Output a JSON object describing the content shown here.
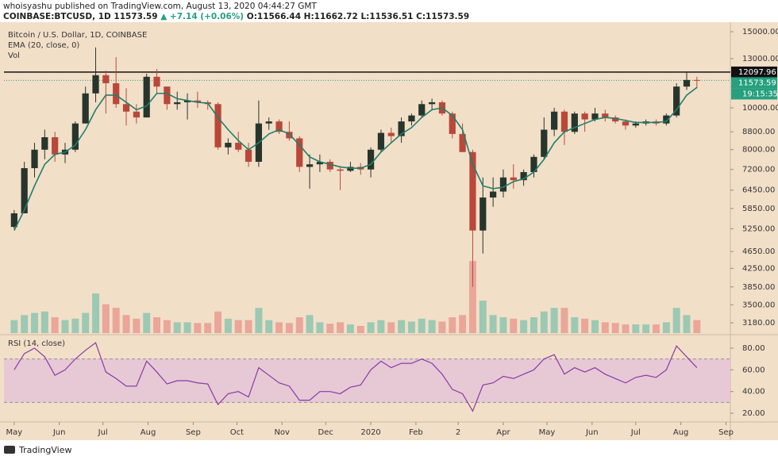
{
  "header": {
    "publisher": "whoisyashu published on TradingView.com, August 13, 2020 04:44:27 GMT",
    "symbol": "COINBASE:BTCUSD, 1D",
    "last": "11573.59",
    "change": "▲ +7.14 (+0.06%)",
    "ohlc": "O:11566.44 H:11662.72 L:11536.51 C:11573.59"
  },
  "chart_data": [
    {
      "type": "candlestick",
      "title": "Bitcoin / U.S. Dollar, 1D, COINBASE",
      "log_scale": true,
      "up_color": "#27352c",
      "down_color": "#b9483a",
      "x": [
        0,
        7,
        14,
        21,
        28,
        35,
        42,
        49,
        56,
        63,
        70,
        77,
        84,
        91,
        98,
        105,
        112,
        119,
        126,
        133,
        140,
        147,
        154,
        161,
        168,
        175,
        182,
        189,
        196,
        203,
        210,
        217,
        224,
        231,
        238,
        245,
        252,
        259,
        266,
        273,
        280,
        287,
        294,
        301,
        308,
        315,
        322,
        329,
        336,
        343,
        350,
        357,
        364,
        371,
        378,
        385,
        392,
        399,
        406,
        413,
        420,
        427,
        434,
        441,
        448,
        455,
        462,
        469
      ],
      "open": [
        5300,
        5700,
        7250,
        8000,
        8550,
        7800,
        8000,
        9200,
        10800,
        11900,
        11400,
        10200,
        9800,
        9500,
        11800,
        11200,
        10200,
        10300,
        10400,
        10300,
        10200,
        8100,
        8300,
        8000,
        7500,
        9200,
        9300,
        8800,
        8500,
        7300,
        7400,
        7500,
        7200,
        7150,
        7300,
        7200,
        8000,
        8750,
        8600,
        9300,
        9600,
        10200,
        10300,
        9700,
        8700,
        7900,
        5200,
        6200,
        6400,
        6900,
        6800,
        7100,
        7700,
        8900,
        9800,
        8800,
        9700,
        9400,
        9700,
        9500,
        9300,
        9100,
        9200,
        9300,
        9200,
        9600,
        11200,
        11600
      ],
      "high": [
        5800,
        7500,
        8300,
        8900,
        8800,
        8300,
        9300,
        11200,
        13800,
        12200,
        13100,
        11100,
        10200,
        12000,
        12300,
        11200,
        10900,
        10800,
        10900,
        10400,
        10300,
        8500,
        8800,
        8300,
        10400,
        9500,
        9400,
        9300,
        8600,
        7800,
        7800,
        7600,
        7300,
        7500,
        7450,
        8100,
        8900,
        9000,
        9500,
        9700,
        10400,
        10500,
        10400,
        9800,
        9200,
        8000,
        6900,
        6900,
        7200,
        7400,
        7200,
        7800,
        9500,
        10000,
        9900,
        9800,
        9800,
        10000,
        9900,
        9600,
        9400,
        9300,
        9400,
        9400,
        9700,
        11400,
        12100,
        11800
      ],
      "low": [
        5250,
        5700,
        6900,
        7600,
        7500,
        7450,
        7900,
        9200,
        10300,
        9700,
        10000,
        9100,
        9200,
        9500,
        10800,
        9900,
        9900,
        9400,
        10000,
        9900,
        8000,
        7800,
        7900,
        7300,
        7300,
        8900,
        8700,
        8400,
        7100,
        6500,
        7100,
        7100,
        6450,
        7100,
        7000,
        6900,
        7900,
        8300,
        8300,
        9100,
        9500,
        9900,
        9600,
        8500,
        7900,
        3850,
        4600,
        5900,
        6200,
        6500,
        6600,
        6900,
        7600,
        8600,
        8200,
        8700,
        8800,
        9300,
        9300,
        9200,
        8900,
        9000,
        9100,
        9100,
        9100,
        9500,
        11000,
        11100
      ],
      "close": [
        5700,
        7250,
        8000,
        8550,
        7800,
        8000,
        9200,
        10800,
        11900,
        11400,
        10200,
        9800,
        9500,
        11800,
        11200,
        10200,
        10300,
        10400,
        10300,
        10200,
        8100,
        8300,
        8000,
        7500,
        9200,
        9300,
        8800,
        8500,
        7300,
        7400,
        7500,
        7200,
        7150,
        7300,
        7200,
        8000,
        8750,
        8600,
        9300,
        9600,
        10200,
        10300,
        9700,
        8700,
        7900,
        5200,
        6200,
        6400,
        6900,
        6800,
        7100,
        7700,
        8900,
        9800,
        8800,
        9700,
        9400,
        9700,
        9500,
        9300,
        9100,
        9200,
        9300,
        9200,
        9600,
        11200,
        11600,
        11573.59
      ],
      "ema": {
        "name": "EMA (20, close, 0)",
        "color": "#1f7f6c",
        "values": [
          5200,
          5800,
          6600,
          7400,
          7800,
          7900,
          8200,
          8900,
          9900,
          10700,
          10700,
          10300,
          9900,
          10100,
          10800,
          10800,
          10500,
          10400,
          10300,
          10250,
          9500,
          8900,
          8400,
          8000,
          8300,
          8700,
          8900,
          8700,
          8200,
          7700,
          7500,
          7400,
          7300,
          7250,
          7250,
          7400,
          7900,
          8300,
          8700,
          9000,
          9500,
          9900,
          10000,
          9600,
          8900,
          7400,
          6600,
          6500,
          6550,
          6750,
          6850,
          7100,
          7600,
          8300,
          8800,
          9000,
          9200,
          9400,
          9500,
          9450,
          9350,
          9250,
          9250,
          9250,
          9300,
          9900,
          10700,
          11150
        ]
      },
      "volume": {
        "name": "Vol",
        "up_color": "#9cc9b3",
        "down_color": "#e9a699",
        "lim": [
          0,
          110
        ],
        "values": [
          18,
          25,
          28,
          30,
          22,
          18,
          20,
          28,
          55,
          40,
          35,
          25,
          20,
          28,
          22,
          18,
          15,
          15,
          14,
          14,
          30,
          20,
          18,
          18,
          35,
          18,
          15,
          14,
          22,
          25,
          15,
          13,
          15,
          12,
          10,
          15,
          18,
          15,
          18,
          16,
          20,
          18,
          16,
          22,
          25,
          100,
          45,
          25,
          22,
          20,
          18,
          22,
          30,
          35,
          35,
          22,
          20,
          18,
          15,
          14,
          12,
          12,
          12,
          12,
          15,
          35,
          25,
          18
        ]
      },
      "price_line": 12097.96,
      "countdown": "19:15:35",
      "label_color": "#26a07e",
      "xlim": [
        -7,
        492
      ],
      "ylim": [
        3010,
        15650
      ],
      "yticks": [
        {
          "value": 15000,
          "label": "15000.00"
        },
        {
          "value": 13000,
          "label": "13000.00"
        },
        {
          "value": 10000,
          "label": "10000.00"
        },
        {
          "value": 8800,
          "label": "8800.00"
        },
        {
          "value": 8000,
          "label": "8000.00"
        },
        {
          "value": 7200,
          "label": "7200.00"
        },
        {
          "value": 6450,
          "label": "6450.00"
        },
        {
          "value": 5850,
          "label": "5850.00"
        },
        {
          "value": 5250,
          "label": "5250.00"
        },
        {
          "value": 4650,
          "label": "4650.00"
        },
        {
          "value": 4250,
          "label": "4250.00"
        },
        {
          "value": 3850,
          "label": "3850.00"
        },
        {
          "value": 3500,
          "label": "3500.00"
        },
        {
          "value": 3180,
          "label": "3180.00"
        }
      ],
      "xticks": [
        {
          "value": 0,
          "label": "May"
        },
        {
          "value": 31,
          "label": "Jun"
        },
        {
          "value": 61,
          "label": "Jul"
        },
        {
          "value": 92,
          "label": "Aug"
        },
        {
          "value": 123,
          "label": "Sep"
        },
        {
          "value": 153,
          "label": "Oct"
        },
        {
          "value": 184,
          "label": "Nov"
        },
        {
          "value": 214,
          "label": "Dec"
        },
        {
          "value": 245,
          "label": "2020"
        },
        {
          "value": 276,
          "label": "Feb"
        },
        {
          "value": 305,
          "label": "2"
        },
        {
          "value": 336,
          "label": "Apr"
        },
        {
          "value": 366,
          "label": "May"
        },
        {
          "value": 397,
          "label": "Jun"
        },
        {
          "value": 427,
          "label": "Jul"
        },
        {
          "value": 458,
          "label": "Aug"
        },
        {
          "value": 489,
          "label": "Sep"
        }
      ]
    },
    {
      "type": "line",
      "title": "RSI (14, close)",
      "color": "#8a3aa6",
      "band": [
        30,
        70
      ],
      "band_color": "#e3c3d8",
      "values": [
        60,
        75,
        80,
        72,
        55,
        60,
        70,
        78,
        85,
        58,
        52,
        45,
        45,
        68,
        58,
        47,
        50,
        50,
        48,
        47,
        28,
        38,
        40,
        35,
        62,
        55,
        48,
        45,
        32,
        32,
        40,
        40,
        38,
        44,
        46,
        60,
        68,
        62,
        66,
        66,
        70,
        66,
        56,
        42,
        38,
        22,
        46,
        48,
        54,
        52,
        56,
        60,
        70,
        74,
        56,
        62,
        58,
        62,
        56,
        52,
        48,
        53,
        55,
        53,
        60,
        82,
        72,
        62
      ],
      "ylim": [
        12,
        92.4
      ],
      "yticks": [
        {
          "value": 20,
          "label": "20.00"
        },
        {
          "value": 40,
          "label": "40.00"
        },
        {
          "value": 60,
          "label": "60.00"
        },
        {
          "value": 80,
          "label": "80.00"
        }
      ]
    }
  ],
  "footer": "TradingView"
}
